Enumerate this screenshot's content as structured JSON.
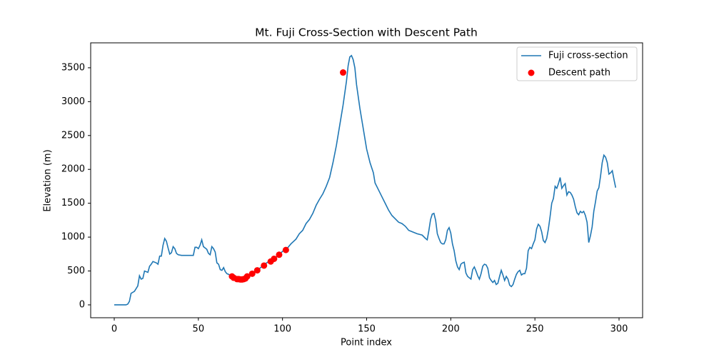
{
  "chart_data": {
    "type": "line",
    "title": "Mt. Fuji Cross-Section with Descent Path",
    "x_label": "Point index",
    "y_label": "Elevation (m)",
    "xlim": [
      -14,
      314
    ],
    "ylim": [
      -190,
      3868
    ],
    "xticks": [
      0,
      50,
      100,
      150,
      200,
      250,
      300
    ],
    "yticks": [
      0,
      500,
      1000,
      1500,
      2000,
      2500,
      3000,
      3500
    ],
    "legend": "upper right",
    "series": [
      {
        "name": "Fuji cross-section",
        "color": "#1f77b4",
        "type": "line",
        "x": [
          0,
          7,
          8,
          9,
          10,
          12,
          14,
          15,
          16,
          17,
          18,
          20,
          21,
          22,
          23,
          25,
          26,
          27,
          28,
          29,
          30,
          31,
          32,
          33,
          34,
          35,
          36,
          37,
          38,
          40,
          45,
          47,
          48,
          49,
          50,
          51,
          52,
          53,
          55,
          56,
          57,
          58,
          59,
          60,
          61,
          62,
          63,
          64,
          65,
          66,
          67,
          68,
          70,
          72,
          74,
          76,
          78,
          80,
          82,
          85,
          88,
          90,
          93,
          95,
          98,
          100,
          103,
          105,
          108,
          110,
          112,
          114,
          116,
          118,
          120,
          122,
          124,
          126,
          128,
          130,
          132,
          134,
          136,
          138,
          139,
          140,
          141,
          142,
          143,
          144,
          146,
          148,
          150,
          152,
          154,
          155,
          157,
          159,
          161,
          163,
          165,
          167,
          169,
          171,
          173,
          175,
          177,
          180,
          183,
          185,
          186,
          187,
          188,
          189,
          190,
          191,
          192,
          193,
          194,
          195,
          196,
          197,
          198,
          199,
          200,
          201,
          202,
          203,
          204,
          205,
          206,
          207,
          208,
          209,
          210,
          211,
          212,
          213,
          214,
          215,
          216,
          217,
          218,
          219,
          220,
          221,
          222,
          223,
          224,
          225,
          226,
          227,
          228,
          229,
          230,
          231,
          232,
          233,
          234,
          235,
          236,
          237,
          238,
          239,
          240,
          241,
          242,
          243,
          244,
          245,
          246,
          247,
          248,
          249,
          250,
          251,
          252,
          253,
          254,
          255,
          256,
          257,
          258,
          259,
          260,
          261,
          262,
          263,
          264,
          265,
          266,
          267,
          268,
          269,
          270,
          271,
          272,
          273,
          274,
          275,
          276,
          277,
          278,
          279,
          280,
          281,
          282,
          283,
          284,
          285,
          286,
          287,
          288,
          289,
          290,
          291,
          292,
          293,
          294,
          295,
          296,
          297,
          298
        ],
        "values": [
          0,
          0,
          10,
          50,
          170,
          200,
          280,
          430,
          380,
          390,
          500,
          480,
          570,
          600,
          640,
          620,
          600,
          720,
          720,
          880,
          980,
          940,
          840,
          750,
          770,
          860,
          830,
          760,
          740,
          730,
          730,
          730,
          850,
          850,
          830,
          880,
          960,
          860,
          820,
          760,
          740,
          860,
          830,
          780,
          620,
          600,
          520,
          510,
          550,
          490,
          460,
          450,
          420,
          380,
          370,
          380,
          400,
          430,
          460,
          510,
          570,
          610,
          660,
          690,
          740,
          790,
          840,
          900,
          970,
          1050,
          1100,
          1200,
          1260,
          1350,
          1470,
          1560,
          1640,
          1750,
          1880,
          2100,
          2350,
          2650,
          2950,
          3300,
          3530,
          3660,
          3680,
          3620,
          3500,
          3250,
          2900,
          2600,
          2300,
          2100,
          1950,
          1800,
          1700,
          1600,
          1500,
          1400,
          1320,
          1270,
          1220,
          1200,
          1160,
          1100,
          1080,
          1050,
          1030,
          980,
          960,
          1100,
          1260,
          1340,
          1350,
          1250,
          1050,
          980,
          920,
          900,
          900,
          960,
          1100,
          1140,
          1060,
          900,
          800,
          650,
          560,
          520,
          600,
          620,
          630,
          470,
          420,
          400,
          380,
          520,
          560,
          500,
          430,
          380,
          460,
          570,
          600,
          590,
          540,
          400,
          360,
          330,
          360,
          300,
          320,
          420,
          510,
          440,
          360,
          420,
          380,
          290,
          270,
          300,
          380,
          450,
          490,
          510,
          440,
          460,
          460,
          540,
          800,
          850,
          830,
          900,
          960,
          1120,
          1190,
          1160,
          1080,
          950,
          920,
          980,
          1120,
          1300,
          1500,
          1570,
          1750,
          1720,
          1790,
          1880,
          1720,
          1760,
          1790,
          1620,
          1670,
          1660,
          1620,
          1560,
          1450,
          1360,
          1330,
          1380,
          1360,
          1380,
          1320,
          1220,
          920,
          1020,
          1150,
          1380,
          1520,
          1680,
          1730,
          1900,
          2100,
          2210,
          2180,
          2100,
          1930,
          1950,
          1980,
          1850,
          1730
        ]
      },
      {
        "name": "Descent path",
        "color": "#ff0000",
        "type": "scatter",
        "x": [
          136,
          102,
          98,
          95,
          93,
          89,
          85,
          82,
          79,
          78,
          77,
          76,
          75,
          74,
          73,
          71,
          70
        ],
        "values": [
          3430,
          810,
          740,
          680,
          640,
          580,
          510,
          460,
          420,
          390,
          380,
          375,
          375,
          380,
          380,
          400,
          420
        ]
      }
    ]
  }
}
